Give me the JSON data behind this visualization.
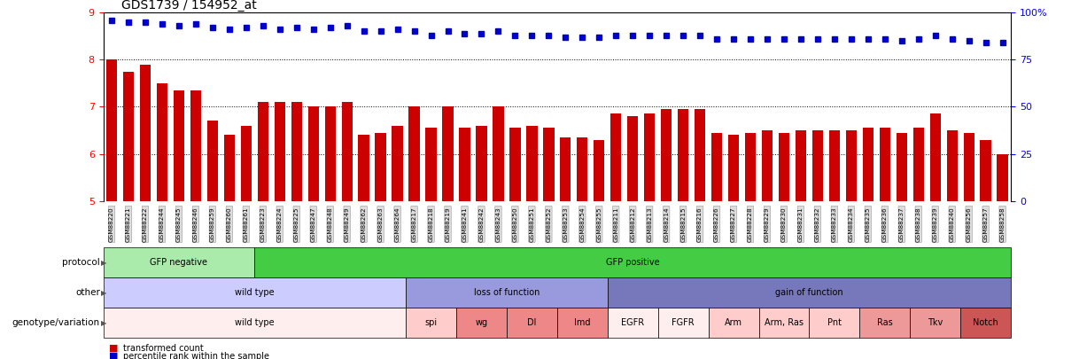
{
  "title": "GDS1739 / 154952_at",
  "samples": [
    "GSM88220",
    "GSM88221",
    "GSM88222",
    "GSM88244",
    "GSM88245",
    "GSM88246",
    "GSM88259",
    "GSM88260",
    "GSM88261",
    "GSM88223",
    "GSM88224",
    "GSM88225",
    "GSM88247",
    "GSM88248",
    "GSM88249",
    "GSM88262",
    "GSM88263",
    "GSM88264",
    "GSM88217",
    "GSM88218",
    "GSM88219",
    "GSM88241",
    "GSM88242",
    "GSM88243",
    "GSM88250",
    "GSM88251",
    "GSM88252",
    "GSM88253",
    "GSM88254",
    "GSM88255",
    "GSM88211",
    "GSM88212",
    "GSM88213",
    "GSM88214",
    "GSM88215",
    "GSM88216",
    "GSM88226",
    "GSM88227",
    "GSM88228",
    "GSM88229",
    "GSM88230",
    "GSM88231",
    "GSM88232",
    "GSM88233",
    "GSM88234",
    "GSM88235",
    "GSM88236",
    "GSM88237",
    "GSM88238",
    "GSM88239",
    "GSM88240",
    "GSM88256",
    "GSM88257",
    "GSM88258"
  ],
  "bar_values": [
    8.0,
    7.75,
    7.9,
    7.5,
    7.35,
    7.35,
    6.7,
    6.4,
    6.6,
    7.1,
    7.1,
    7.1,
    7.0,
    7.0,
    7.1,
    6.4,
    6.45,
    6.6,
    7.0,
    6.55,
    7.0,
    6.55,
    6.6,
    7.0,
    6.55,
    6.6,
    6.55,
    6.35,
    6.35,
    6.3,
    6.85,
    6.8,
    6.85,
    6.95,
    6.95,
    6.95,
    6.45,
    6.4,
    6.45,
    6.5,
    6.45,
    6.5,
    6.5,
    6.5,
    6.5,
    6.55,
    6.55,
    6.45,
    6.55,
    6.85,
    6.5,
    6.45,
    6.3,
    6.0
  ],
  "dot_values": [
    96,
    95,
    95,
    94,
    93,
    94,
    92,
    91,
    92,
    93,
    91,
    92,
    91,
    92,
    93,
    90,
    90,
    91,
    90,
    88,
    90,
    89,
    89,
    90,
    88,
    88,
    88,
    87,
    87,
    87,
    88,
    88,
    88,
    88,
    88,
    88,
    86,
    86,
    86,
    86,
    86,
    86,
    86,
    86,
    86,
    86,
    86,
    85,
    86,
    88,
    86,
    85,
    84,
    84
  ],
  "protocol_groups": [
    {
      "label": "GFP negative",
      "start": 0,
      "end": 8,
      "color": "#aaeaaa"
    },
    {
      "label": "GFP positive",
      "start": 9,
      "end": 53,
      "color": "#44cc44"
    }
  ],
  "other_groups": [
    {
      "label": "wild type",
      "start": 0,
      "end": 17,
      "color": "#ccccff"
    },
    {
      "label": "loss of function",
      "start": 18,
      "end": 29,
      "color": "#9999dd"
    },
    {
      "label": "gain of function",
      "start": 30,
      "end": 53,
      "color": "#7777bb"
    }
  ],
  "genotype_groups": [
    {
      "label": "wild type",
      "start": 0,
      "end": 17,
      "color": "#ffeeee"
    },
    {
      "label": "spi",
      "start": 18,
      "end": 20,
      "color": "#ffcccc"
    },
    {
      "label": "wg",
      "start": 21,
      "end": 23,
      "color": "#ee8888"
    },
    {
      "label": "Dl",
      "start": 24,
      "end": 26,
      "color": "#ee8888"
    },
    {
      "label": "Imd",
      "start": 27,
      "end": 29,
      "color": "#ee8888"
    },
    {
      "label": "EGFR",
      "start": 30,
      "end": 32,
      "color": "#ffeeee"
    },
    {
      "label": "FGFR",
      "start": 33,
      "end": 35,
      "color": "#ffeeee"
    },
    {
      "label": "Arm",
      "start": 36,
      "end": 38,
      "color": "#ffcccc"
    },
    {
      "label": "Arm, Ras",
      "start": 39,
      "end": 41,
      "color": "#ffcccc"
    },
    {
      "label": "Pnt",
      "start": 42,
      "end": 44,
      "color": "#ffcccc"
    },
    {
      "label": "Ras",
      "start": 45,
      "end": 47,
      "color": "#ee9999"
    },
    {
      "label": "Tkv",
      "start": 48,
      "end": 50,
      "color": "#ee9999"
    },
    {
      "label": "Notch",
      "start": 51,
      "end": 53,
      "color": "#cc5555"
    }
  ],
  "bar_color": "#cc0000",
  "dot_color": "#0000cc",
  "ylim_left": [
    5.0,
    9.0
  ],
  "ylim_right": [
    0,
    100
  ],
  "yticks_left": [
    5,
    6,
    7,
    8,
    9
  ],
  "yticks_right": [
    0,
    25,
    50,
    75,
    100
  ],
  "ylabel_right_labels": [
    "0",
    "25",
    "50",
    "75",
    "100%"
  ],
  "grid_values": [
    6,
    7,
    8
  ],
  "background_color": "#ffffff",
  "row_labels": [
    "protocol",
    "other",
    "genotype/variation"
  ],
  "legend_items": [
    {
      "color": "#cc0000",
      "label": "transformed count"
    },
    {
      "color": "#0000cc",
      "label": "percentile rank within the sample"
    }
  ]
}
